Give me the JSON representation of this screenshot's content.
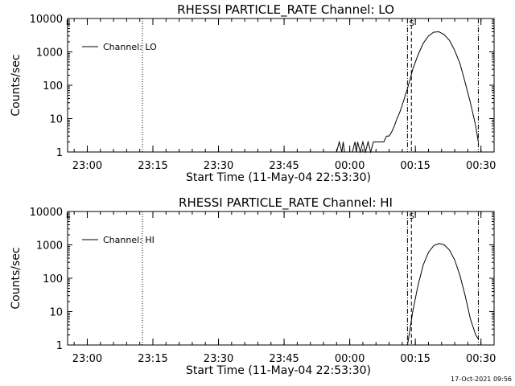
{
  "footer": {
    "timestamp": "17-Oct-2021 09:56"
  },
  "chart_data": [
    {
      "type": "line",
      "title": "RHESSI PARTICLE_RATE Channel: LO",
      "xlabel": "Start Time (11-May-04 22:53:30)",
      "ylabel": "Counts/sec",
      "yscale": "log",
      "ylim": [
        1,
        10000
      ],
      "xlim": [
        22.925,
        24.55
      ],
      "x_ticks": [
        {
          "x": 23.0,
          "label": "23:00"
        },
        {
          "x": 23.25,
          "label": "23:15"
        },
        {
          "x": 23.5,
          "label": "23:30"
        },
        {
          "x": 23.75,
          "label": "23:45"
        },
        {
          "x": 24.0,
          "label": "00:00"
        },
        {
          "x": 24.25,
          "label": "00:15"
        },
        {
          "x": 24.5,
          "label": "00:30"
        }
      ],
      "y_ticks": [
        {
          "y": 1,
          "label": "1"
        },
        {
          "y": 10,
          "label": "10"
        },
        {
          "y": 100,
          "label": "100"
        },
        {
          "y": 1000,
          "label": "1000"
        },
        {
          "y": 10000,
          "label": "10000"
        }
      ],
      "legend": {
        "label": "Channel: LO",
        "position": "top-left"
      },
      "marker_label": "S",
      "vlines": [
        {
          "x": 23.21,
          "style": "dotted"
        },
        {
          "x": 24.22,
          "style": "dashdot"
        },
        {
          "x": 24.235,
          "style": "dashed"
        },
        {
          "x": 24.49,
          "style": "dashdot"
        }
      ],
      "series": [
        {
          "x": [
            23.95,
            23.96,
            23.97,
            23.975,
            23.98,
            23.99,
            24.0,
            24.01,
            24.02,
            24.025,
            24.03,
            24.04,
            24.05,
            24.06,
            24.07,
            24.08,
            24.09,
            24.1,
            24.11,
            24.12,
            24.13,
            24.14,
            24.15,
            24.16,
            24.17,
            24.18,
            24.19,
            24.2,
            24.21,
            24.22,
            24.23,
            24.24,
            24.26,
            24.28,
            24.3,
            24.32,
            24.34,
            24.36,
            24.38,
            24.4,
            24.42,
            24.44,
            24.46,
            24.48,
            24.49
          ],
          "y": [
            1,
            2,
            1,
            2,
            1,
            1,
            1,
            1,
            2,
            1,
            2,
            1,
            2,
            1,
            2,
            1,
            2,
            2,
            2,
            2,
            2,
            3,
            3,
            4,
            6,
            10,
            15,
            25,
            45,
            80,
            150,
            300,
            800,
            1800,
            3000,
            3900,
            4000,
            3300,
            2200,
            1100,
            450,
            120,
            30,
            6,
            2
          ]
        }
      ]
    },
    {
      "type": "line",
      "title": "RHESSI PARTICLE_RATE Channel: HI",
      "xlabel": "Start Time (11-May-04 22:53:30)",
      "ylabel": "Counts/sec",
      "yscale": "log",
      "ylim": [
        1,
        10000
      ],
      "xlim": [
        22.925,
        24.55
      ],
      "x_ticks": [
        {
          "x": 23.0,
          "label": "23:00"
        },
        {
          "x": 23.25,
          "label": "23:15"
        },
        {
          "x": 23.5,
          "label": "23:30"
        },
        {
          "x": 23.75,
          "label": "23:45"
        },
        {
          "x": 24.0,
          "label": "00:00"
        },
        {
          "x": 24.25,
          "label": "00:15"
        },
        {
          "x": 24.5,
          "label": "00:30"
        }
      ],
      "y_ticks": [
        {
          "y": 1,
          "label": "1"
        },
        {
          "y": 10,
          "label": "10"
        },
        {
          "y": 100,
          "label": "100"
        },
        {
          "y": 1000,
          "label": "1000"
        },
        {
          "y": 10000,
          "label": "10000"
        }
      ],
      "legend": {
        "label": "Channel: HI",
        "position": "top-left"
      },
      "marker_label": "S",
      "vlines": [
        {
          "x": 23.21,
          "style": "dotted"
        },
        {
          "x": 24.22,
          "style": "dashdot"
        },
        {
          "x": 24.235,
          "style": "dashed"
        },
        {
          "x": 24.49,
          "style": "dashdot"
        }
      ],
      "series": [
        {
          "x": [
            24.22,
            24.23,
            24.24,
            24.26,
            24.28,
            24.3,
            24.32,
            24.34,
            24.36,
            24.38,
            24.4,
            24.42,
            24.44,
            24.46,
            24.48,
            24.49
          ],
          "y": [
            1,
            3,
            10,
            60,
            250,
            600,
            950,
            1100,
            1000,
            700,
            350,
            120,
            30,
            6,
            2,
            1.5
          ]
        }
      ]
    }
  ]
}
